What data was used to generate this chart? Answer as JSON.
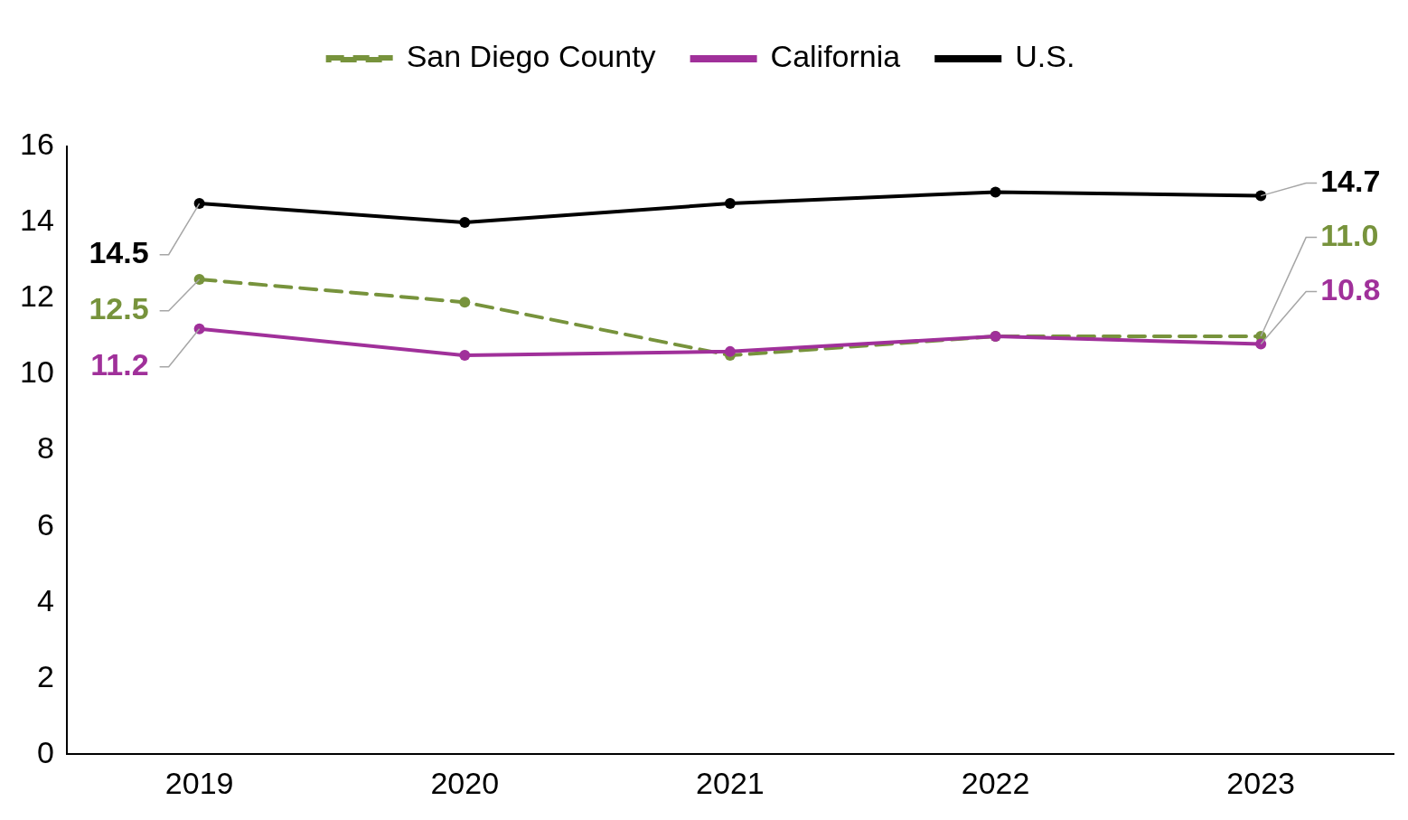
{
  "chart_data": {
    "type": "line",
    "categories": [
      "2019",
      "2020",
      "2021",
      "2022",
      "2023"
    ],
    "series": [
      {
        "name": "San Diego County",
        "color": "#77933c",
        "line_style": "dashed",
        "values": [
          12.5,
          11.9,
          10.5,
          11.0,
          11.0
        ],
        "value_labels": [
          "12.5",
          null,
          null,
          null,
          "11.0"
        ]
      },
      {
        "name": "California",
        "color": "#a0309a",
        "values": [
          11.2,
          10.5,
          10.6,
          11.0,
          10.8
        ],
        "value_labels": [
          "11.2",
          null,
          null,
          null,
          "10.8"
        ]
      },
      {
        "name": "U.S.",
        "color": "#000000",
        "values": [
          14.5,
          14.0,
          14.5,
          14.8,
          14.7
        ],
        "value_labels": [
          "14.5",
          null,
          null,
          null,
          "14.7"
        ]
      }
    ],
    "ylim": [
      0,
      16
    ],
    "yticks": [
      0,
      2,
      4,
      6,
      8,
      10,
      12,
      14,
      16
    ],
    "grid": false,
    "legend": "top",
    "marker": "circle",
    "line_style": "solid"
  }
}
